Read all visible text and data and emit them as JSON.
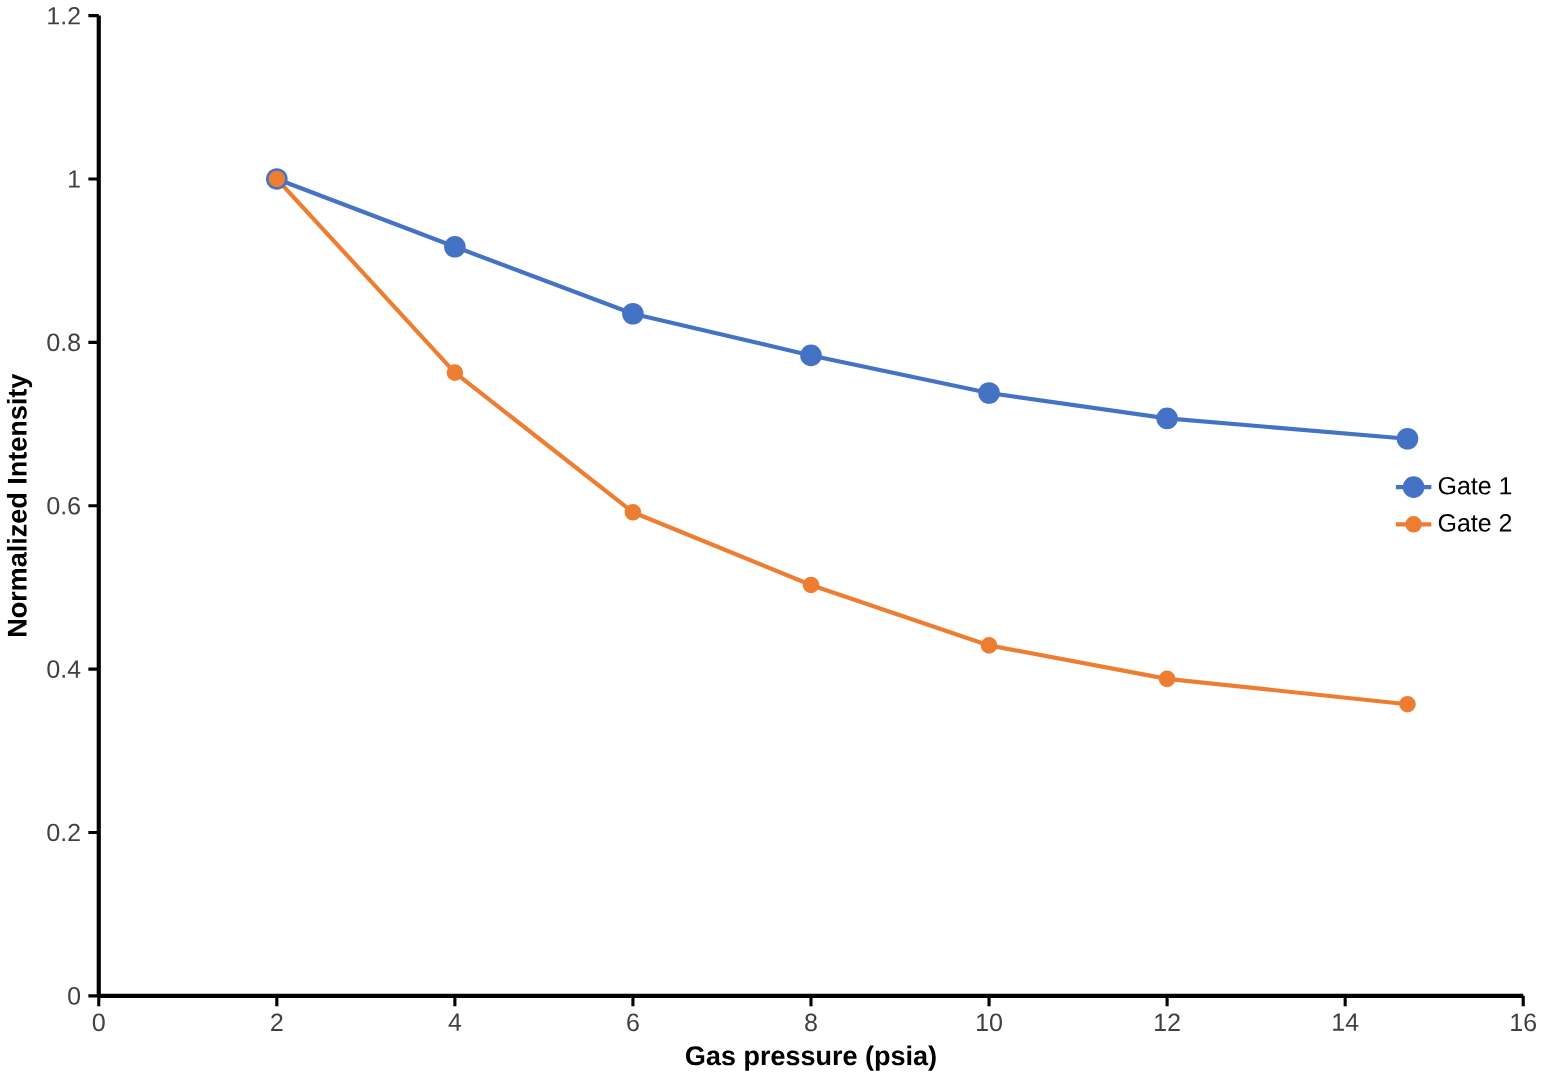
{
  "chart_data": {
    "type": "line",
    "xlabel": "Gas pressure (psia)",
    "ylabel": "Normalized Intensity",
    "xlim": [
      0,
      16
    ],
    "ylim": [
      0,
      1.2
    ],
    "xticks": [
      0,
      2,
      4,
      6,
      8,
      10,
      12,
      14,
      16
    ],
    "yticks": [
      0,
      0.2,
      0.4,
      0.6,
      0.8,
      1,
      1.2
    ],
    "marker": "circle",
    "legend": "right",
    "series": [
      {
        "name": "Gate 1",
        "color": "#4472c4",
        "x": [
          2,
          4,
          6,
          8,
          10,
          12,
          14.7
        ],
        "values": [
          1.0,
          0.917,
          0.835,
          0.784,
          0.738,
          0.707,
          0.682
        ]
      },
      {
        "name": "Gate 2",
        "color": "#ed7d31",
        "x": [
          2,
          4,
          6,
          8,
          10,
          12,
          14.7
        ],
        "values": [
          1.0,
          0.763,
          0.592,
          0.503,
          0.429,
          0.388,
          0.357
        ]
      }
    ]
  }
}
